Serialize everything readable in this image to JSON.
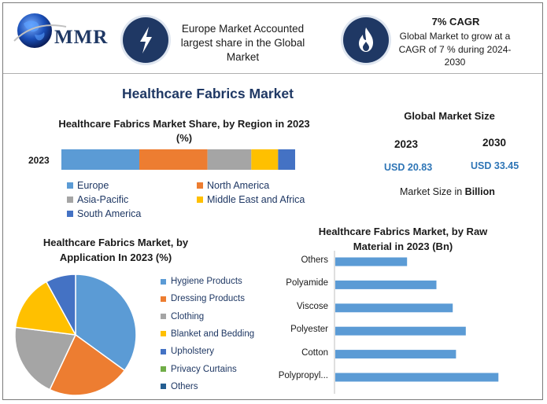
{
  "header": {
    "logo_text": "MMR",
    "europe_text": "Europe Market Accounted largest share in the Global Market",
    "cagr_title": "7% CAGR",
    "cagr_text": "Global Market to grow at a CAGR of 7 % during 2024-2030",
    "bolt_icon": "lightning-bolt-icon",
    "flame_icon": "flame-icon"
  },
  "main_title": "Healthcare Fabrics Market",
  "colors": {
    "title": "#1f3864",
    "usd": "#2e75b6",
    "icon_bg": "#1f3864"
  },
  "market_size": {
    "title": "Global Market Size",
    "year1": "2023",
    "year2": "2030",
    "value1": "USD 20.83",
    "value2": "USD 33.45",
    "note_prefix": "Market Size in ",
    "note_bold": "Billion"
  },
  "chart_data": [
    {
      "type": "bar",
      "orientation": "horizontal-stacked",
      "title": "Healthcare Fabrics Market Share, by Region in 2023 (%)",
      "categories": [
        "2023"
      ],
      "series": [
        {
          "name": "Europe",
          "values": [
            32
          ],
          "color": "#5b9bd5"
        },
        {
          "name": "North America",
          "values": [
            28
          ],
          "color": "#ed7d31"
        },
        {
          "name": "Asia-Pacific",
          "values": [
            18
          ],
          "color": "#a5a5a5"
        },
        {
          "name": "Middle East and Africa",
          "values": [
            11
          ],
          "color": "#ffc000"
        },
        {
          "name": "South America",
          "values": [
            7
          ],
          "color": "#4472c4"
        }
      ],
      "legend": "bottom"
    },
    {
      "type": "pie",
      "title": "Healthcare Fabrics Market, by Application  In 2023 (%)",
      "slices": [
        {
          "name": "Hygiene Products",
          "value": 35,
          "color": "#5b9bd5"
        },
        {
          "name": "Dressing Products",
          "value": 22,
          "color": "#ed7d31"
        },
        {
          "name": "Clothing",
          "value": 20,
          "color": "#a5a5a5"
        },
        {
          "name": "Blanket and Bedding",
          "value": 15,
          "color": "#ffc000"
        },
        {
          "name": "Upholstery",
          "value": 8,
          "color": "#4472c4"
        },
        {
          "name": "Privacy Curtains",
          "value": 0,
          "color": "#70ad47"
        },
        {
          "name": "Others",
          "value": 0,
          "color": "#255e91"
        }
      ],
      "legend": "right"
    },
    {
      "type": "bar",
      "orientation": "horizontal",
      "title": "Healthcare Fabrics Market, by Raw Material in 2023 (Bn)",
      "categories": [
        "Others",
        "Polyamide",
        "Viscose",
        "Polyester",
        "Cotton",
        "Polypropyl..."
      ],
      "values": [
        2.2,
        3.1,
        3.6,
        4.0,
        3.7,
        5.0
      ],
      "xlim": [
        0,
        5.5
      ],
      "color": "#5b9bd5"
    }
  ]
}
